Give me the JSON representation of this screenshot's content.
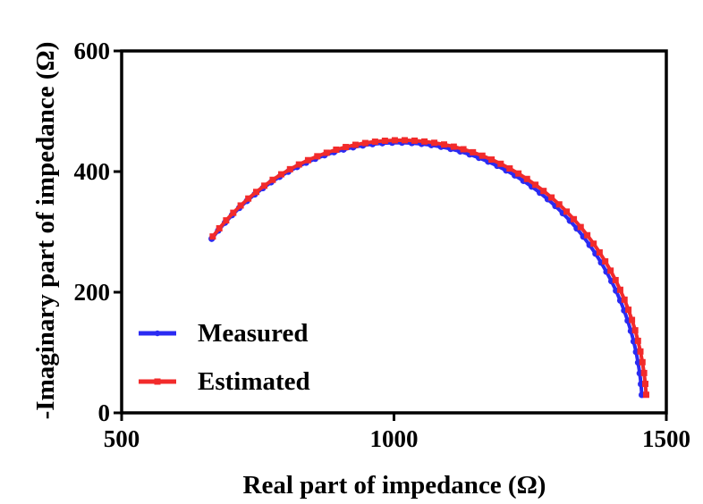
{
  "chart_data": {
    "type": "line",
    "xlabel": "Real part of impedance (Ω)",
    "ylabel": "-Imaginary part of impedance (Ω)",
    "xlim": [
      500,
      1500
    ],
    "ylim": [
      0,
      600
    ],
    "xticks": [
      500,
      1000,
      1500
    ],
    "yticks": [
      0,
      200,
      400,
      600
    ],
    "grid": false,
    "legend_position": "bottom-left",
    "series": [
      {
        "name": "Measured",
        "color": "#2b2bf2",
        "marker": "circle",
        "center": [
          1008,
          0
        ],
        "radius": 448,
        "angle_start_deg": 3.8,
        "angle_end_deg": 139.9,
        "points": 60
      },
      {
        "name": "Estimated",
        "color": "#f22b2b",
        "marker": "square",
        "center": [
          1012,
          0
        ],
        "radius": 452,
        "angle_start_deg": 3.8,
        "angle_end_deg": 139.7,
        "points": 60
      }
    ]
  }
}
